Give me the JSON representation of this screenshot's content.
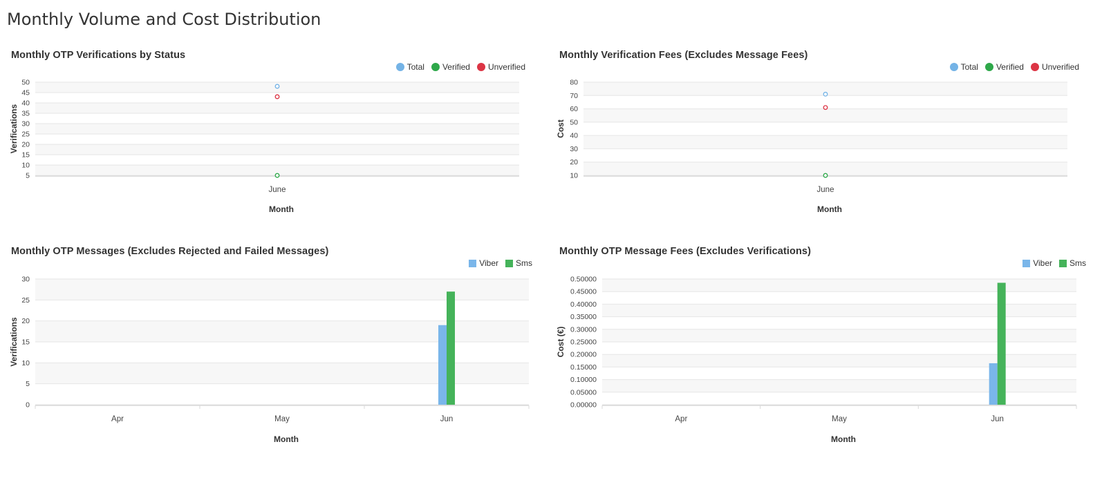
{
  "page": {
    "title": "Monthly Volume and Cost Distribution"
  },
  "colors": {
    "total": "#74b3e6",
    "verified": "#2ea84a",
    "unverified": "#dc3545",
    "viber": "#7ab6ea",
    "sms": "#45b35a"
  },
  "chart_data": [
    {
      "id": "otp-verifications",
      "type": "scatter",
      "title": "Monthly OTP Verifications by Status",
      "xlabel": "Month",
      "ylabel": "Verifications",
      "categories": [
        "June"
      ],
      "yticks": [
        "5",
        "10",
        "15",
        "20",
        "25",
        "30",
        "35",
        "40",
        "45",
        "50"
      ],
      "ylim": [
        5,
        50
      ],
      "legend_position": "top-right",
      "grid": true,
      "series": [
        {
          "name": "Total",
          "color_key": "total",
          "values": [
            48
          ]
        },
        {
          "name": "Verified",
          "color_key": "verified",
          "values": [
            5
          ]
        },
        {
          "name": "Unverified",
          "color_key": "unverified",
          "values": [
            43
          ]
        }
      ]
    },
    {
      "id": "verification-fees",
      "type": "scatter",
      "title": "Monthly Verification Fees (Excludes Message Fees)",
      "xlabel": "Month",
      "ylabel": "Cost",
      "categories": [
        "June"
      ],
      "yticks": [
        "10",
        "20",
        "30",
        "40",
        "50",
        "60",
        "70",
        "80"
      ],
      "ylim": [
        10,
        80
      ],
      "legend_position": "top-right",
      "grid": true,
      "series": [
        {
          "name": "Total",
          "color_key": "total",
          "values": [
            71
          ]
        },
        {
          "name": "Verified",
          "color_key": "verified",
          "values": [
            10
          ]
        },
        {
          "name": "Unverified",
          "color_key": "unverified",
          "values": [
            61
          ]
        }
      ]
    },
    {
      "id": "otp-messages",
      "type": "bar",
      "title": "Monthly OTP Messages (Excludes Rejected and Failed Messages)",
      "xlabel": "Month",
      "ylabel": "Verifications",
      "categories": [
        "Apr",
        "May",
        "Jun"
      ],
      "yticks": [
        "0",
        "5",
        "10",
        "15",
        "20",
        "25",
        "30"
      ],
      "ylim": [
        0,
        30
      ],
      "legend_position": "top-right",
      "grid": true,
      "series": [
        {
          "name": "Viber",
          "color_key": "viber",
          "values": [
            0,
            0,
            19
          ]
        },
        {
          "name": "Sms",
          "color_key": "sms",
          "values": [
            0,
            0,
            27
          ]
        }
      ]
    },
    {
      "id": "message-fees",
      "type": "bar",
      "title": "Monthly OTP Message Fees (Excludes Verifications)",
      "xlabel": "Month",
      "ylabel": "Cost (€)",
      "categories": [
        "Apr",
        "May",
        "Jun"
      ],
      "yticks": [
        "0.00000",
        "0.05000",
        "0.10000",
        "0.15000",
        "0.20000",
        "0.25000",
        "0.30000",
        "0.35000",
        "0.40000",
        "0.45000",
        "0.50000"
      ],
      "ylim": [
        0,
        0.5
      ],
      "legend_position": "top-right",
      "grid": true,
      "series": [
        {
          "name": "Viber",
          "color_key": "viber",
          "values": [
            0,
            0,
            0.165
          ]
        },
        {
          "name": "Sms",
          "color_key": "sms",
          "values": [
            0,
            0,
            0.485
          ]
        }
      ]
    }
  ]
}
